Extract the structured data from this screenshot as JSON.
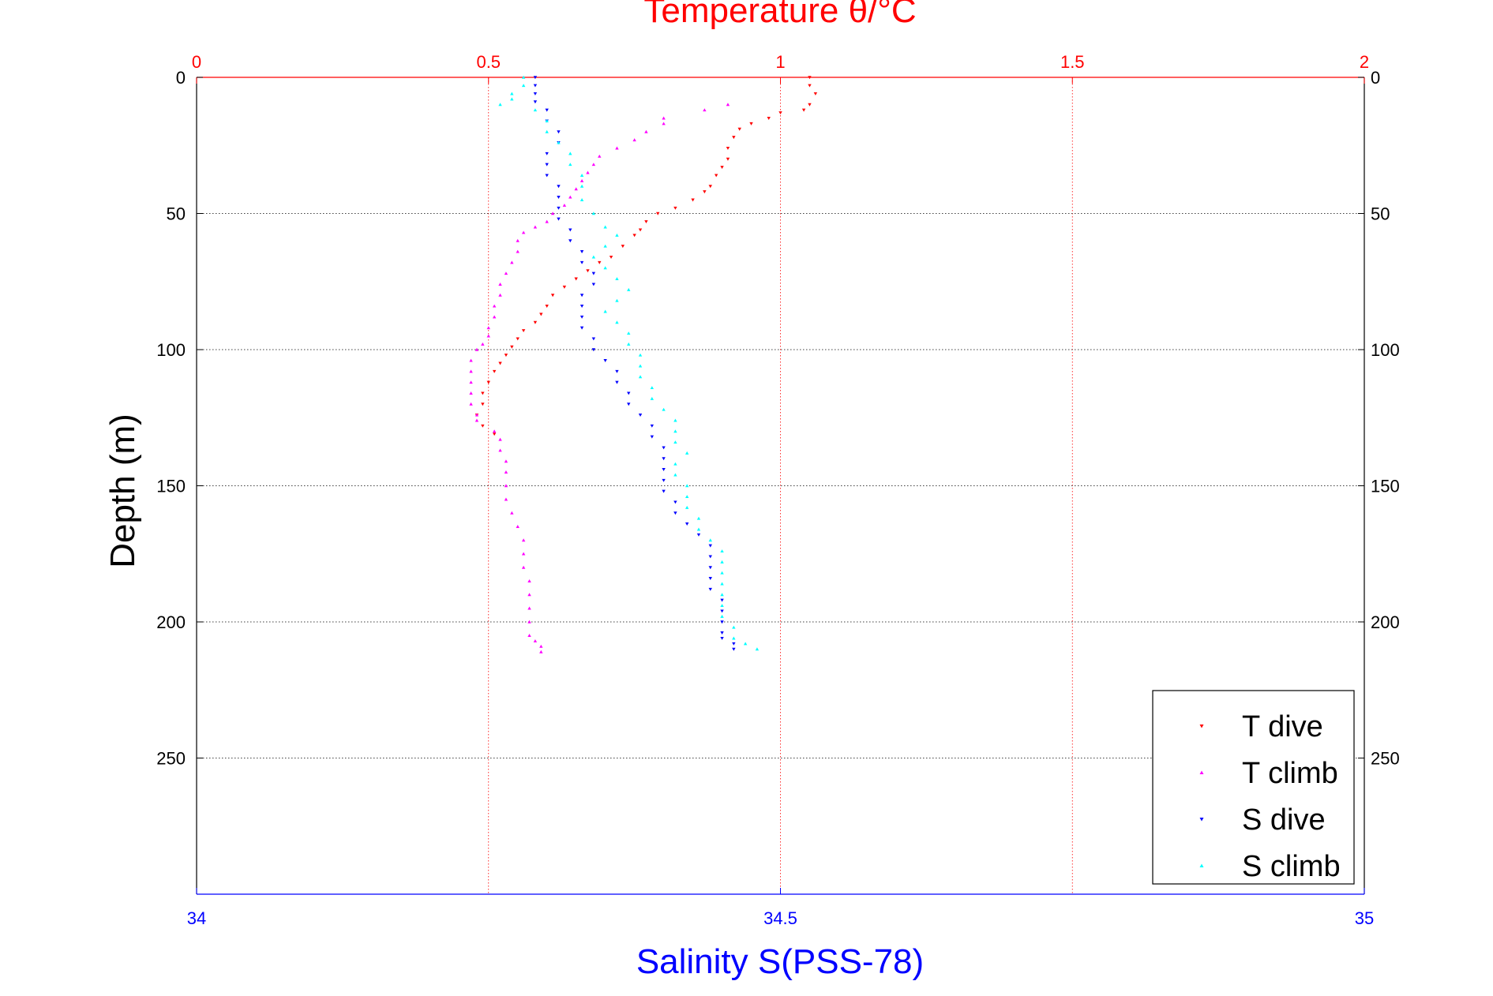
{
  "chart_data": {
    "type": "scatter",
    "title": "Temperature θ/°C",
    "xlabel": "Salinity S(PSS-78)",
    "ylabel": "Depth (m)",
    "top_axis": {
      "label": "Temperature θ/°C",
      "range": [
        0,
        2
      ],
      "ticks": [
        "0",
        "0.5",
        "1",
        "1.5",
        "2"
      ],
      "color": "#ff0000"
    },
    "bottom_axis": {
      "label": "Salinity S(PSS-78)",
      "range": [
        34,
        35
      ],
      "ticks": [
        "34",
        "34.5",
        "35"
      ],
      "color": "#0000ff"
    },
    "y_axis": {
      "range": [
        0,
        300
      ],
      "reversed": true,
      "ticks": [
        "0",
        "50",
        "100",
        "150",
        "200",
        "250"
      ]
    },
    "grid": true,
    "legend_placement": "bottom-right",
    "series": [
      {
        "name": "T dive",
        "axis": "temperature",
        "color": "#ff0000",
        "marker": "triangle-down",
        "points": [
          [
            1.05,
            0
          ],
          [
            1.05,
            3
          ],
          [
            1.06,
            6
          ],
          [
            1.05,
            10
          ],
          [
            1.04,
            12
          ],
          [
            1.0,
            13
          ],
          [
            0.98,
            15
          ],
          [
            0.95,
            17
          ],
          [
            0.93,
            19
          ],
          [
            0.92,
            22
          ],
          [
            0.91,
            26
          ],
          [
            0.91,
            30
          ],
          [
            0.9,
            33
          ],
          [
            0.89,
            36
          ],
          [
            0.88,
            40
          ],
          [
            0.87,
            42
          ],
          [
            0.85,
            45
          ],
          [
            0.82,
            48
          ],
          [
            0.79,
            50
          ],
          [
            0.77,
            53
          ],
          [
            0.76,
            56
          ],
          [
            0.75,
            58
          ],
          [
            0.73,
            62
          ],
          [
            0.71,
            66
          ],
          [
            0.69,
            68
          ],
          [
            0.67,
            71
          ],
          [
            0.65,
            74
          ],
          [
            0.63,
            77
          ],
          [
            0.61,
            80
          ],
          [
            0.6,
            84
          ],
          [
            0.59,
            87
          ],
          [
            0.58,
            90
          ],
          [
            0.56,
            93
          ],
          [
            0.55,
            96
          ],
          [
            0.54,
            99
          ],
          [
            0.53,
            102
          ],
          [
            0.52,
            105
          ],
          [
            0.51,
            108
          ],
          [
            0.5,
            112
          ],
          [
            0.49,
            116
          ],
          [
            0.49,
            120
          ],
          [
            0.48,
            124
          ],
          [
            0.49,
            128
          ],
          [
            0.51,
            131
          ]
        ]
      },
      {
        "name": "T climb",
        "axis": "temperature",
        "color": "#ff00ff",
        "marker": "triangle-up",
        "points": [
          [
            0.91,
            10
          ],
          [
            0.87,
            12
          ],
          [
            0.8,
            15
          ],
          [
            0.8,
            17
          ],
          [
            0.77,
            20
          ],
          [
            0.75,
            23
          ],
          [
            0.72,
            26
          ],
          [
            0.69,
            29
          ],
          [
            0.68,
            32
          ],
          [
            0.67,
            35
          ],
          [
            0.66,
            38
          ],
          [
            0.65,
            41
          ],
          [
            0.64,
            44
          ],
          [
            0.63,
            47
          ],
          [
            0.61,
            50
          ],
          [
            0.6,
            53
          ],
          [
            0.58,
            55
          ],
          [
            0.56,
            57
          ],
          [
            0.55,
            60
          ],
          [
            0.55,
            64
          ],
          [
            0.54,
            68
          ],
          [
            0.53,
            72
          ],
          [
            0.52,
            76
          ],
          [
            0.52,
            80
          ],
          [
            0.51,
            84
          ],
          [
            0.51,
            88
          ],
          [
            0.5,
            92
          ],
          [
            0.5,
            95
          ],
          [
            0.49,
            98
          ],
          [
            0.48,
            100
          ],
          [
            0.47,
            104
          ],
          [
            0.47,
            108
          ],
          [
            0.47,
            112
          ],
          [
            0.47,
            116
          ],
          [
            0.47,
            120
          ],
          [
            0.48,
            124
          ],
          [
            0.48,
            126
          ],
          [
            0.51,
            130
          ],
          [
            0.52,
            133
          ],
          [
            0.52,
            137
          ],
          [
            0.53,
            141
          ],
          [
            0.53,
            145
          ],
          [
            0.53,
            150
          ],
          [
            0.53,
            155
          ],
          [
            0.54,
            160
          ],
          [
            0.55,
            165
          ],
          [
            0.56,
            170
          ],
          [
            0.56,
            175
          ],
          [
            0.56,
            180
          ],
          [
            0.57,
            185
          ],
          [
            0.57,
            190
          ],
          [
            0.57,
            195
          ],
          [
            0.57,
            200
          ],
          [
            0.57,
            205
          ],
          [
            0.58,
            207
          ],
          [
            0.59,
            209
          ],
          [
            0.59,
            211
          ]
        ]
      },
      {
        "name": "S dive",
        "axis": "salinity",
        "color": "#0000ff",
        "marker": "triangle-down",
        "points": [
          [
            34.29,
            0
          ],
          [
            34.29,
            3
          ],
          [
            34.29,
            6
          ],
          [
            34.29,
            9
          ],
          [
            34.3,
            12
          ],
          [
            34.3,
            16
          ],
          [
            34.31,
            20
          ],
          [
            34.31,
            24
          ],
          [
            34.3,
            28
          ],
          [
            34.3,
            32
          ],
          [
            34.3,
            36
          ],
          [
            34.31,
            40
          ],
          [
            34.31,
            44
          ],
          [
            34.31,
            48
          ],
          [
            34.31,
            52
          ],
          [
            34.32,
            56
          ],
          [
            34.32,
            60
          ],
          [
            34.33,
            64
          ],
          [
            34.33,
            68
          ],
          [
            34.34,
            72
          ],
          [
            34.34,
            76
          ],
          [
            34.33,
            80
          ],
          [
            34.33,
            84
          ],
          [
            34.33,
            88
          ],
          [
            34.33,
            92
          ],
          [
            34.34,
            96
          ],
          [
            34.34,
            100
          ],
          [
            34.35,
            104
          ],
          [
            34.36,
            108
          ],
          [
            34.36,
            112
          ],
          [
            34.37,
            116
          ],
          [
            34.37,
            120
          ],
          [
            34.38,
            124
          ],
          [
            34.39,
            128
          ],
          [
            34.39,
            132
          ],
          [
            34.4,
            136
          ],
          [
            34.4,
            140
          ],
          [
            34.4,
            144
          ],
          [
            34.4,
            148
          ],
          [
            34.4,
            152
          ],
          [
            34.41,
            156
          ],
          [
            34.41,
            160
          ],
          [
            34.42,
            164
          ],
          [
            34.43,
            168
          ],
          [
            34.44,
            172
          ],
          [
            34.44,
            176
          ],
          [
            34.44,
            180
          ],
          [
            34.44,
            184
          ],
          [
            34.44,
            188
          ],
          [
            34.45,
            192
          ],
          [
            34.45,
            196
          ],
          [
            34.45,
            200
          ],
          [
            34.45,
            204
          ],
          [
            34.45,
            206
          ],
          [
            34.46,
            208
          ],
          [
            34.46,
            210
          ]
        ]
      },
      {
        "name": "S climb",
        "axis": "salinity",
        "color": "#00ffff",
        "marker": "triangle-up",
        "points": [
          [
            34.28,
            0
          ],
          [
            34.28,
            3
          ],
          [
            34.27,
            6
          ],
          [
            34.27,
            8
          ],
          [
            34.26,
            10
          ],
          [
            34.29,
            12
          ],
          [
            34.3,
            16
          ],
          [
            34.3,
            20
          ],
          [
            34.31,
            24
          ],
          [
            34.32,
            28
          ],
          [
            34.32,
            32
          ],
          [
            34.33,
            36
          ],
          [
            34.33,
            40
          ],
          [
            34.33,
            45
          ],
          [
            34.34,
            50
          ],
          [
            34.35,
            55
          ],
          [
            34.36,
            58
          ],
          [
            34.35,
            62
          ],
          [
            34.34,
            66
          ],
          [
            34.35,
            70
          ],
          [
            34.36,
            74
          ],
          [
            34.37,
            78
          ],
          [
            34.36,
            82
          ],
          [
            34.35,
            86
          ],
          [
            34.36,
            90
          ],
          [
            34.37,
            94
          ],
          [
            34.37,
            98
          ],
          [
            34.38,
            102
          ],
          [
            34.38,
            106
          ],
          [
            34.38,
            110
          ],
          [
            34.39,
            114
          ],
          [
            34.39,
            118
          ],
          [
            34.4,
            122
          ],
          [
            34.41,
            126
          ],
          [
            34.41,
            130
          ],
          [
            34.41,
            134
          ],
          [
            34.42,
            138
          ],
          [
            34.41,
            142
          ],
          [
            34.41,
            146
          ],
          [
            34.42,
            150
          ],
          [
            34.42,
            154
          ],
          [
            34.42,
            158
          ],
          [
            34.43,
            162
          ],
          [
            34.43,
            166
          ],
          [
            34.44,
            170
          ],
          [
            34.45,
            174
          ],
          [
            34.45,
            178
          ],
          [
            34.45,
            182
          ],
          [
            34.45,
            186
          ],
          [
            34.45,
            190
          ],
          [
            34.45,
            194
          ],
          [
            34.45,
            198
          ],
          [
            34.46,
            202
          ],
          [
            34.46,
            206
          ],
          [
            34.47,
            208
          ],
          [
            34.48,
            210
          ]
        ]
      }
    ]
  }
}
